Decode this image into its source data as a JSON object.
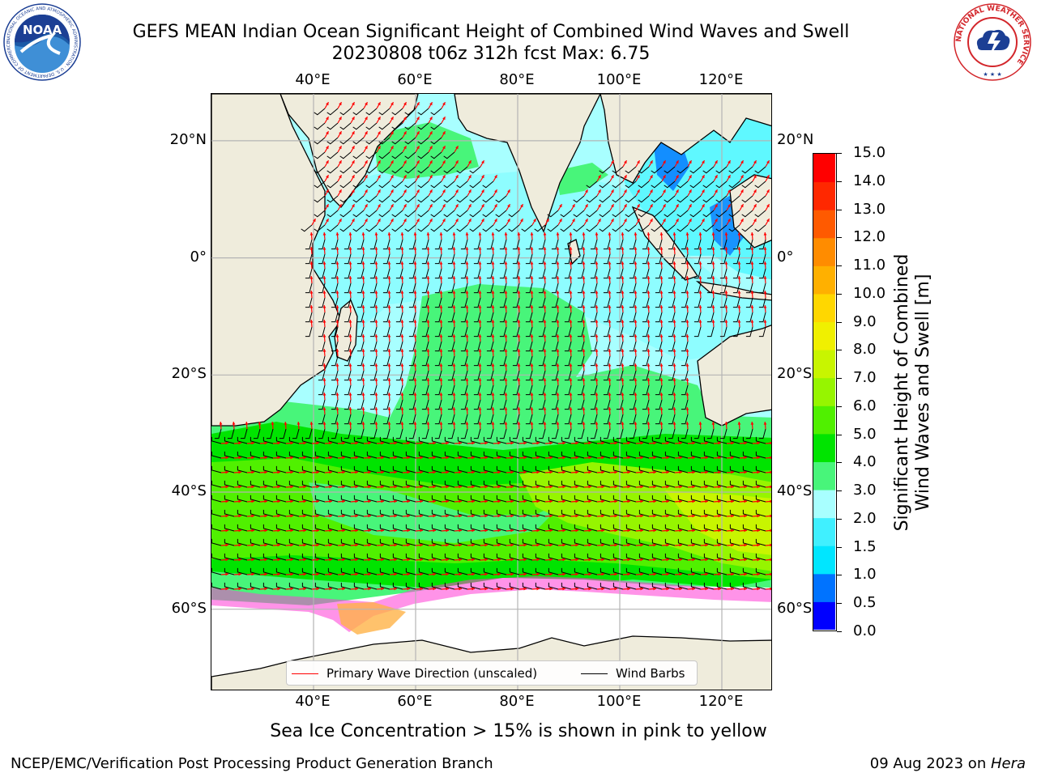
{
  "title_line1": "GEFS MEAN Indian Ocean Significant Height of Combined Wind Waves and Swell",
  "title_line2": "20230808 t06z 312h fcst   Max: 6.75",
  "logos": {
    "left": {
      "icon": "noaa-logo",
      "text": "NOAA",
      "ring": "NATIONAL OCEANIC AND ATMOSPHERIC ADMINISTRATION · U.S. DEPARTMENT OF COMMERCE"
    },
    "right": {
      "icon": "nws-logo",
      "ring": "NATIONAL WEATHER SERVICE"
    }
  },
  "map": {
    "projection": "equirectangular",
    "lon_range": [
      20,
      130
    ],
    "lat_range": [
      -74,
      28
    ],
    "lon_ticks": [
      {
        "value": 40,
        "label": "40°E"
      },
      {
        "value": 60,
        "label": "60°E"
      },
      {
        "value": 80,
        "label": "80°E"
      },
      {
        "value": 100,
        "label": "100°E"
      },
      {
        "value": 120,
        "label": "120°E"
      }
    ],
    "lat_ticks": [
      {
        "value": 20,
        "label": "20°N"
      },
      {
        "value": 0,
        "label": "0°"
      },
      {
        "value": -20,
        "label": "20°S"
      },
      {
        "value": -40,
        "label": "40°S"
      },
      {
        "value": -60,
        "label": "60°S"
      }
    ],
    "grid": true,
    "colors": {
      "land": "#efecdc",
      "coast": "#000000",
      "wave_arrows": "#ff0000",
      "wind_barbs": "#000000",
      "ice_free": "#ffffff",
      "grid": "#b4b4b4"
    }
  },
  "colorbar": {
    "label": "Significant Height of Combined Wind Waves and Swell [m]",
    "label_lines": [
      "Significant Height of Combined",
      "Wind Waves and Swell [m]"
    ],
    "boundaries": [
      0.0,
      0.5,
      1.0,
      1.5,
      2.0,
      3.0,
      4.0,
      5.0,
      6.0,
      7.0,
      8.0,
      9.0,
      10.0,
      11.0,
      12.0,
      13.0,
      14.0,
      15.0
    ],
    "tick_labels": [
      "0.0",
      "0.5",
      "1.0",
      "1.5",
      "2.0",
      "3.0",
      "4.0",
      "5.0",
      "6.0",
      "7.0",
      "8.0",
      "9.0",
      "10.0",
      "11.0",
      "12.0",
      "13.0",
      "14.0",
      "15.0"
    ],
    "colors": [
      "#0000ff",
      "#0073ff",
      "#00e6ff",
      "#40f0ff",
      "#a8ffff",
      "#48f57a",
      "#00e400",
      "#50f000",
      "#96f500",
      "#c8f500",
      "#f0f000",
      "#ffd700",
      "#ffb000",
      "#ff8c00",
      "#ff5a00",
      "#ff2800",
      "#ff0000"
    ]
  },
  "legend": {
    "items": [
      {
        "label": "Primary Wave Direction (unscaled)",
        "color": "#ff0000"
      },
      {
        "label": "Wind Barbs",
        "color": "#000000"
      }
    ]
  },
  "note": "Sea Ice Concentration > 15% is shown in pink to yellow",
  "footer": {
    "left": "NCEP/EMC/Verification Post Processing Product Generation Branch",
    "right_prefix": "09 Aug 2023 on ",
    "right_host": "Hera"
  }
}
